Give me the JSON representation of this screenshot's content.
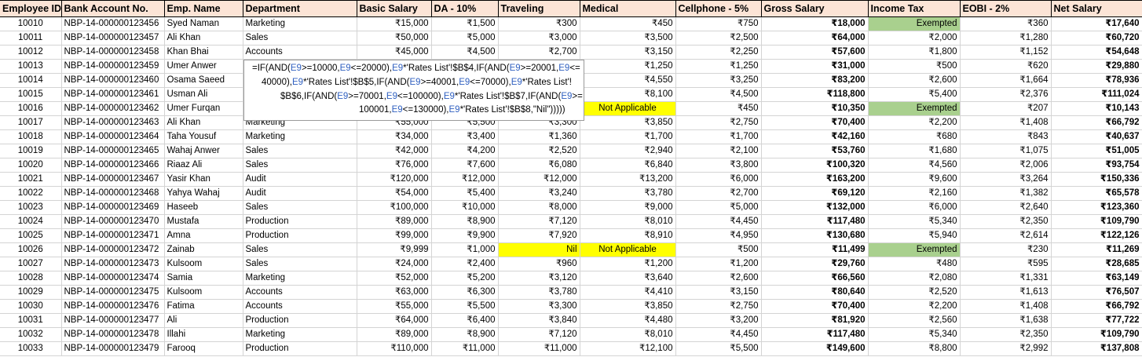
{
  "headers": [
    "Employee ID",
    "Bank Account No.",
    "Emp. Name",
    "Department",
    "Basic Salary",
    "DA - 10%",
    "Traveling",
    "Medical",
    "Cellphone - 5%",
    "Gross Salary",
    "Income Tax",
    "EOBI - 2%",
    "Net Salary"
  ],
  "rows": [
    [
      "10010",
      "NBP-14-000000123456",
      "Syed Naman",
      "Marketing",
      "₹15,000",
      "₹1,500",
      "₹300",
      "₹450",
      "₹750",
      "₹18,000",
      "Exempted",
      "₹360",
      "₹17,640"
    ],
    [
      "10011",
      "NBP-14-000000123457",
      "Ali Khan",
      "Sales",
      "₹50,000",
      "₹5,000",
      "₹3,000",
      "₹3,500",
      "₹2,500",
      "₹64,000",
      "₹2,000",
      "₹1,280",
      "₹60,720"
    ],
    [
      "10012",
      "NBP-14-000000123458",
      "Khan Bhai",
      "Accounts",
      "₹45,000",
      "₹4,500",
      "₹2,700",
      "₹3,150",
      "₹2,250",
      "₹57,600",
      "₹1,800",
      "₹1,152",
      "₹54,648"
    ],
    [
      "10013",
      "NBP-14-000000123459",
      "Umer Anwer",
      "",
      "",
      "",
      "",
      "₹1,250",
      "₹1,250",
      "₹31,000",
      "₹500",
      "₹620",
      "₹29,880"
    ],
    [
      "10014",
      "NBP-14-000000123460",
      "Osama Saeed",
      "",
      "",
      "",
      "",
      "₹4,550",
      "₹3,250",
      "₹83,200",
      "₹2,600",
      "₹1,664",
      "₹78,936"
    ],
    [
      "10015",
      "NBP-14-000000123461",
      "Usman Ali",
      "",
      "",
      "",
      "",
      "₹8,100",
      "₹4,500",
      "₹118,800",
      "₹5,400",
      "₹2,376",
      "₹111,024"
    ],
    [
      "10016",
      "NBP-14-000000123462",
      "Umer Furqan",
      "",
      "",
      "",
      "",
      "Not Applicable",
      "₹450",
      "₹10,350",
      "Exempted",
      "₹207",
      "₹10,143"
    ],
    [
      "10017",
      "NBP-14-000000123463",
      "Ali Khan",
      "Marketing",
      "₹55,000",
      "₹5,500",
      "₹3,300",
      "₹3,850",
      "₹2,750",
      "₹70,400",
      "₹2,200",
      "₹1,408",
      "₹66,792"
    ],
    [
      "10018",
      "NBP-14-000000123464",
      "Taha Yousuf",
      "Marketing",
      "₹34,000",
      "₹3,400",
      "₹1,360",
      "₹1,700",
      "₹1,700",
      "₹42,160",
      "₹680",
      "₹843",
      "₹40,637"
    ],
    [
      "10019",
      "NBP-14-000000123465",
      "Wahaj Anwer",
      "Sales",
      "₹42,000",
      "₹4,200",
      "₹2,520",
      "₹2,940",
      "₹2,100",
      "₹53,760",
      "₹1,680",
      "₹1,075",
      "₹51,005"
    ],
    [
      "10020",
      "NBP-14-000000123466",
      "Riaaz Ali",
      "Sales",
      "₹76,000",
      "₹7,600",
      "₹6,080",
      "₹6,840",
      "₹3,800",
      "₹100,320",
      "₹4,560",
      "₹2,006",
      "₹93,754"
    ],
    [
      "10021",
      "NBP-14-000000123467",
      "Yasir Khan",
      "Audit",
      "₹120,000",
      "₹12,000",
      "₹12,000",
      "₹13,200",
      "₹6,000",
      "₹163,200",
      "₹9,600",
      "₹3,264",
      "₹150,336"
    ],
    [
      "10022",
      "NBP-14-000000123468",
      "Yahya Wahaj",
      "Audit",
      "₹54,000",
      "₹5,400",
      "₹3,240",
      "₹3,780",
      "₹2,700",
      "₹69,120",
      "₹2,160",
      "₹1,382",
      "₹65,578"
    ],
    [
      "10023",
      "NBP-14-000000123469",
      "Haseeb",
      "Sales",
      "₹100,000",
      "₹10,000",
      "₹8,000",
      "₹9,000",
      "₹5,000",
      "₹132,000",
      "₹6,000",
      "₹2,640",
      "₹123,360"
    ],
    [
      "10024",
      "NBP-14-000000123470",
      "Mustafa",
      "Production",
      "₹89,000",
      "₹8,900",
      "₹7,120",
      "₹8,010",
      "₹4,450",
      "₹117,480",
      "₹5,340",
      "₹2,350",
      "₹109,790"
    ],
    [
      "10025",
      "NBP-14-000000123471",
      "Amna",
      "Production",
      "₹99,000",
      "₹9,900",
      "₹7,920",
      "₹8,910",
      "₹4,950",
      "₹130,680",
      "₹5,940",
      "₹2,614",
      "₹122,126"
    ],
    [
      "10026",
      "NBP-14-000000123472",
      "Zainab",
      "Sales",
      "₹9,999",
      "₹1,000",
      "Nil",
      "Not Applicable",
      "₹500",
      "₹11,499",
      "Exempted",
      "₹230",
      "₹11,269"
    ],
    [
      "10027",
      "NBP-14-000000123473",
      "Kulsoom",
      "Sales",
      "₹24,000",
      "₹2,400",
      "₹960",
      "₹1,200",
      "₹1,200",
      "₹29,760",
      "₹480",
      "₹595",
      "₹28,685"
    ],
    [
      "10028",
      "NBP-14-000000123474",
      "Samia",
      "Marketing",
      "₹52,000",
      "₹5,200",
      "₹3,120",
      "₹3,640",
      "₹2,600",
      "₹66,560",
      "₹2,080",
      "₹1,331",
      "₹63,149"
    ],
    [
      "10029",
      "NBP-14-000000123475",
      "Kulsoom",
      "Accounts",
      "₹63,000",
      "₹6,300",
      "₹3,780",
      "₹4,410",
      "₹3,150",
      "₹80,640",
      "₹2,520",
      "₹1,613",
      "₹76,507"
    ],
    [
      "10030",
      "NBP-14-000000123476",
      "Fatima",
      "Accounts",
      "₹55,000",
      "₹5,500",
      "₹3,300",
      "₹3,850",
      "₹2,750",
      "₹70,400",
      "₹2,200",
      "₹1,408",
      "₹66,792"
    ],
    [
      "10031",
      "NBP-14-000000123477",
      "Ali",
      "Production",
      "₹64,000",
      "₹6,400",
      "₹3,840",
      "₹4,480",
      "₹3,200",
      "₹81,920",
      "₹2,560",
      "₹1,638",
      "₹77,722"
    ],
    [
      "10032",
      "NBP-14-000000123478",
      "Illahi",
      "Marketing",
      "₹89,000",
      "₹8,900",
      "₹7,120",
      "₹8,010",
      "₹4,450",
      "₹117,480",
      "₹5,340",
      "₹2,350",
      "₹109,790"
    ],
    [
      "10033",
      "NBP-14-000000123479",
      "Farooq",
      "Production",
      "₹110,000",
      "₹11,000",
      "₹11,000",
      "₹12,100",
      "₹5,500",
      "₹149,600",
      "₹8,800",
      "₹2,992",
      "₹137,808"
    ]
  ],
  "formula_tooltip": {
    "lines": [
      "=IF(AND(E9>=10000,E9<=20000),E9*'Rates List'!$B$4,IF(AND(E9>=20001,E9<=",
      "40000),E9*'Rates List'!$B$5,IF(AND(E9>=40001,E9<=70000),E9*'Rates List'!",
      "$B$6,IF(AND(E9>=70001,E9<=100000),E9*'Rates List'!$B$7,IF(AND(E9>=",
      "100001,E9<=130000),E9*'Rates List'!$B$8,\"Nil\")))))"
    ]
  },
  "colors": {
    "header_bg": "#fce4d6",
    "exempted_bg": "#a9d08e",
    "highlight_bg": "#ffff00",
    "formula_ref": "#3060c0"
  }
}
